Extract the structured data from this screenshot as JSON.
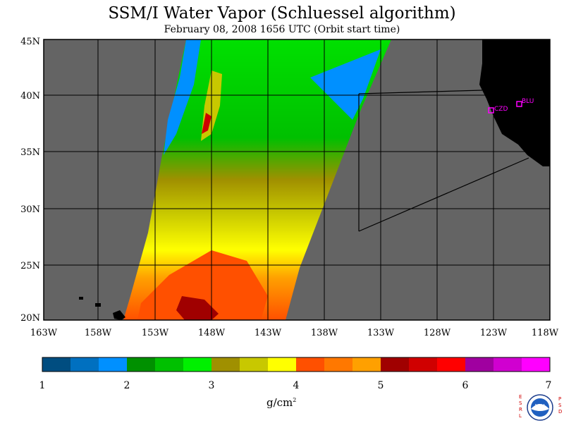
{
  "title": "SSM/I Water Vapor (Schluessel algorithm)",
  "subtitle": "February 08, 2008   1656 UTC  (Orbit start time)",
  "map": {
    "lat_labels": [
      "45N",
      "40N",
      "35N",
      "30N",
      "25N",
      "20N"
    ],
    "lon_labels": [
      "163W",
      "158W",
      "153W",
      "148W",
      "143W",
      "138W",
      "133W",
      "128W",
      "123W",
      "118W"
    ],
    "stations": [
      {
        "label": "CZD",
        "color": "#ff00ff"
      },
      {
        "label": "BLU",
        "color": "#ff00ff"
      }
    ],
    "land_color": "#000000",
    "ocean_nodata_color": "#646464"
  },
  "colorbar": {
    "colors": [
      "#004d80",
      "#0070c0",
      "#0090ff",
      "#009000",
      "#00c000",
      "#00f000",
      "#a09000",
      "#c8c800",
      "#ffff00",
      "#ff5000",
      "#ff7800",
      "#ffa000",
      "#a00000",
      "#d00000",
      "#ff0000",
      "#a000a0",
      "#d000d0",
      "#ff00ff"
    ],
    "tick_labels": [
      "1",
      "2",
      "3",
      "4",
      "5",
      "6",
      "7"
    ],
    "units": "g/cm",
    "units_exponent": "2"
  },
  "logo": {
    "left_letters": [
      "E",
      "S",
      "R",
      "L"
    ],
    "right_letters": [
      "P",
      "S",
      "D"
    ],
    "badge": "NOAA"
  }
}
